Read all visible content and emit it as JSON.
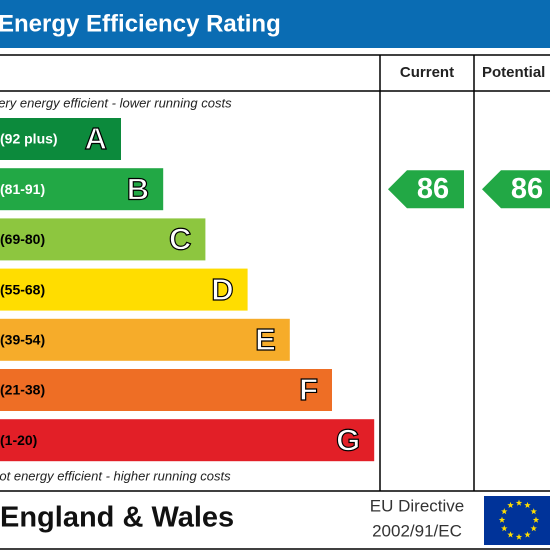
{
  "header": {
    "title": "Energy Efficiency Rating"
  },
  "columns": {
    "current": "Current",
    "potential": "Potential"
  },
  "top_note": "Very energy efficient - lower running costs",
  "bottom_note": "Not energy efficient - higher running costs",
  "bands": [
    {
      "range": "(92 plus)",
      "letter": "A",
      "color": "#0c8a3c",
      "text_color": "#ffffff"
    },
    {
      "range": "(81-91)",
      "letter": "B",
      "color": "#22a845",
      "text_color": "#ffffff"
    },
    {
      "range": "(69-80)",
      "letter": "C",
      "color": "#8dc63f",
      "text_color": "#000000"
    },
    {
      "range": "(55-68)",
      "letter": "D",
      "color": "#ffdd00",
      "text_color": "#000000"
    },
    {
      "range": "(39-54)",
      "letter": "E",
      "color": "#f6ac2a",
      "text_color": "#000000"
    },
    {
      "range": "(21-38)",
      "letter": "F",
      "color": "#ee6e25",
      "text_color": "#000000"
    },
    {
      "range": "(1-20)",
      "letter": "G",
      "color": "#e21f27",
      "text_color": "#000000"
    }
  ],
  "ratings": {
    "current": 86,
    "potential": 86
  },
  "footer": {
    "country": "England & Wales",
    "directive": [
      "EU Directive",
      "2002/91/EC"
    ]
  }
}
